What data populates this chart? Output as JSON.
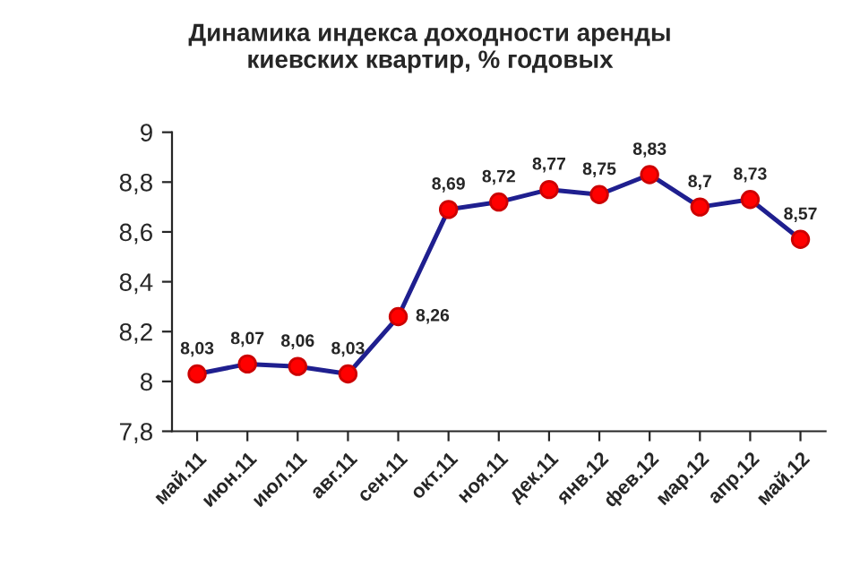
{
  "chart_data": {
    "type": "line",
    "title": "Динамика индекса доходности аренды\nкиевских квартир, % годовых",
    "categories": [
      "май.11",
      "июн.11",
      "июл.11",
      "авг.11",
      "сен.11",
      "окт.11",
      "ноя.11",
      "дек.11",
      "янв.12",
      "фев.12",
      "мар.12",
      "апр.12",
      "май.12"
    ],
    "series": [
      {
        "color": "#1f1f8f",
        "values": [
          8.03,
          8.07,
          8.06,
          8.03,
          8.26,
          8.69,
          8.72,
          8.77,
          8.75,
          8.83,
          8.7,
          8.73,
          8.57
        ],
        "value_labels": [
          "8,03",
          "8,07",
          "8,06",
          "8,03",
          "8,26",
          "8,69",
          "8,72",
          "8,77",
          "8,75",
          "8,83",
          "8,7",
          "8,73",
          "8,57"
        ]
      }
    ],
    "ylim": [
      7.8,
      9
    ],
    "yticks": [
      {
        "value": 7.8,
        "label": "7,8"
      },
      8,
      {
        "value": 8.2,
        "label": "8,2"
      },
      {
        "value": 8.4,
        "label": "8,4"
      },
      {
        "value": 8.6,
        "label": "8,6"
      },
      {
        "value": 8.8,
        "label": "8,8"
      },
      9
    ],
    "grid": false,
    "legend": false,
    "marker": "circle",
    "line_style": "solid"
  }
}
